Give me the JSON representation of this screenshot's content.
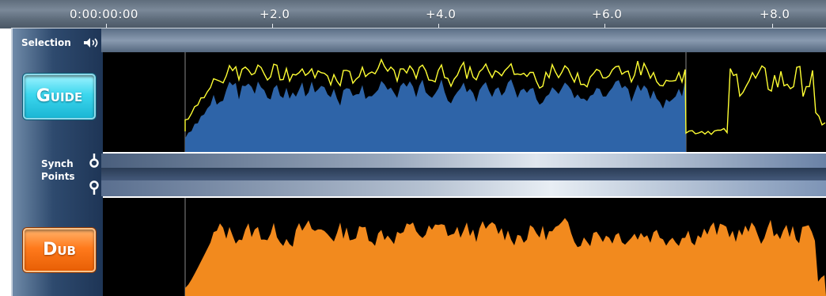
{
  "ruler": {
    "labels": [
      "0:00:00:00",
      "+2.0",
      "+4.0",
      "+6.0",
      "+8.0"
    ]
  },
  "selection": {
    "label": "Selection"
  },
  "guide": {
    "label": "Guide"
  },
  "dub": {
    "label": "Dub"
  },
  "synch": {
    "line1": "Synch",
    "line2": "Points"
  },
  "colors": {
    "guide_waveform": "#2e64a8",
    "guide_envelope": "#ffff33",
    "dub_waveform": "#f28a1e",
    "guide_button": "#3dd7ee",
    "dub_button": "#ff7a1c"
  },
  "icons": {
    "selection": "speaker-icon",
    "synch_top": "synch-pin-top-icon",
    "synch_bottom": "synch-pin-bottom-icon"
  }
}
